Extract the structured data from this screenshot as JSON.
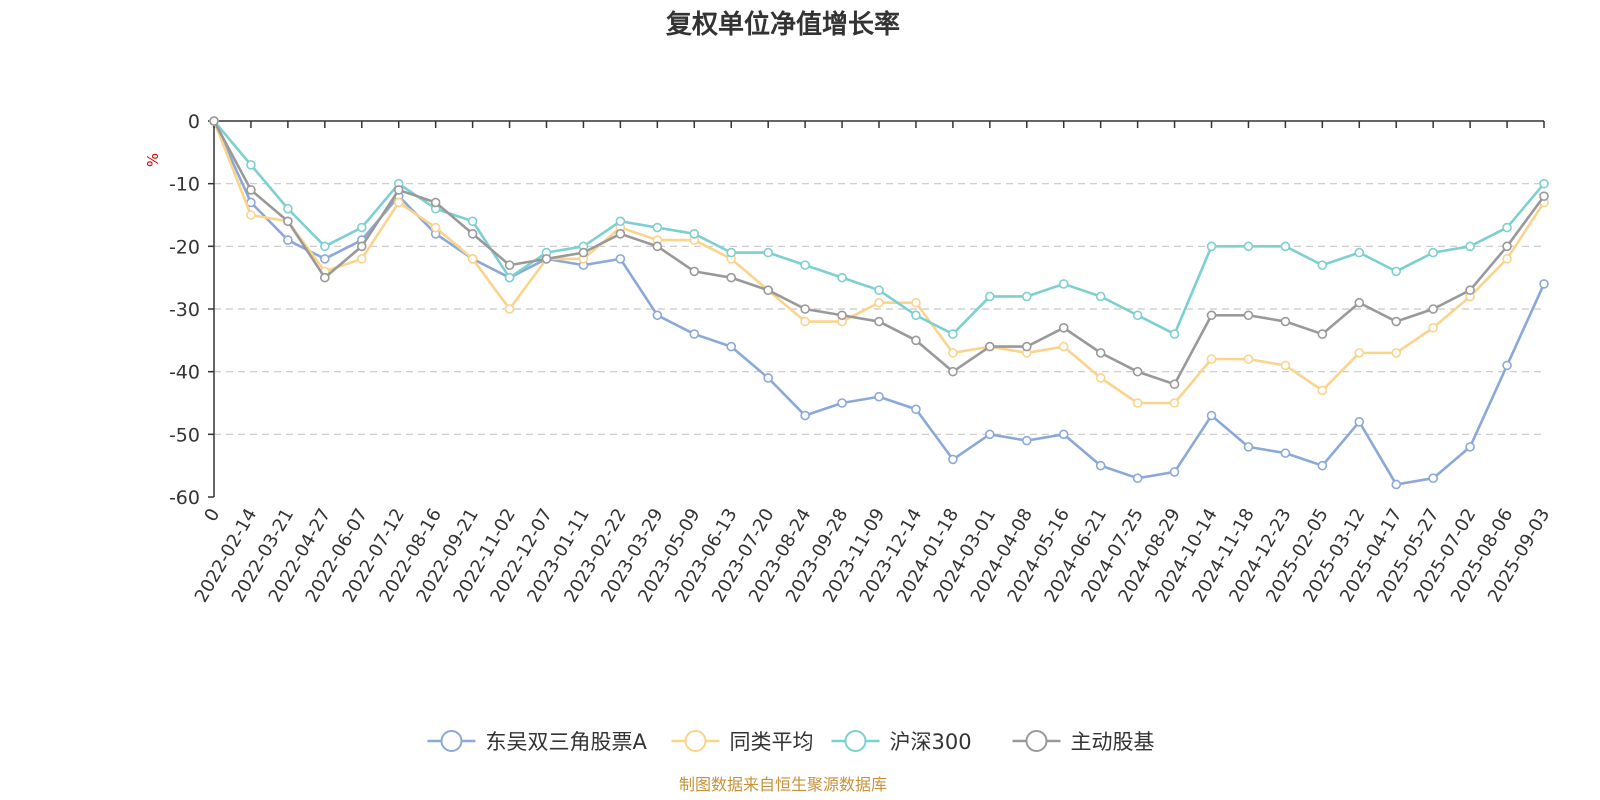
{
  "chart_data": {
    "type": "line",
    "title": "复权单位净值增长率",
    "ylabel": "%",
    "ylim": [
      -60,
      0
    ],
    "yticks": [
      0,
      -10,
      -20,
      -30,
      -40,
      -50,
      -60
    ],
    "grid": true,
    "legend_position": "bottom",
    "source": "制图数据来自恒生聚源数据库",
    "categories": [
      "0",
      "2022-02-14",
      "2022-03-21",
      "2022-04-27",
      "2022-06-07",
      "2022-07-12",
      "2022-08-16",
      "2022-09-21",
      "2022-11-02",
      "2022-12-07",
      "2023-01-11",
      "2023-02-22",
      "2023-03-29",
      "2023-05-09",
      "2023-06-13",
      "2023-07-20",
      "2023-08-24",
      "2023-09-28",
      "2023-11-09",
      "2023-12-14",
      "2024-01-18",
      "2024-03-01",
      "2024-04-08",
      "2024-05-16",
      "2024-06-21",
      "2024-07-25",
      "2024-08-29",
      "2024-10-14",
      "2024-11-18",
      "2024-12-23",
      "2025-02-05",
      "2025-03-12",
      "2025-04-17",
      "2025-05-27",
      "2025-07-02",
      "2025-08-06",
      "2025-09-03"
    ],
    "series": [
      {
        "name": "东吴双三角股票A",
        "color": "#8aa8d8",
        "values": [
          0,
          -13,
          -19,
          -22,
          -19,
          -12,
          -18,
          -22,
          -25,
          -22,
          -23,
          -22,
          -31,
          -34,
          -36,
          -41,
          -47,
          -45,
          -44,
          -46,
          -54,
          -50,
          -51,
          -50,
          -55,
          -57,
          -56,
          -47,
          -52,
          -53,
          -55,
          -48,
          -58,
          -57,
          -52,
          -39,
          -26
        ]
      },
      {
        "name": "同类平均",
        "color": "#fad38c",
        "values": [
          0,
          -15,
          -16,
          -24,
          -22,
          -13,
          -17,
          -22,
          -30,
          -22,
          -22,
          -17,
          -19,
          -19,
          -22,
          -27,
          -32,
          -32,
          -29,
          -29,
          -37,
          -36,
          -37,
          -36,
          -41,
          -45,
          -45,
          -38,
          -38,
          -39,
          -43,
          -37,
          -37,
          -33,
          -28,
          -22,
          -13
        ]
      },
      {
        "name": "沪深300",
        "color": "#7dcfd0",
        "values": [
          0,
          -7,
          -14,
          -20,
          -17,
          -10,
          -14,
          -16,
          -25,
          -21,
          -20,
          -16,
          -17,
          -18,
          -21,
          -21,
          -23,
          -25,
          -27,
          -31,
          -34,
          -28,
          -28,
          -26,
          -28,
          -31,
          -34,
          -20,
          -20,
          -20,
          -23,
          -21,
          -24,
          -21,
          -20,
          -17,
          -10
        ]
      },
      {
        "name": "主动股基",
        "color": "#999999",
        "values": [
          0,
          -11,
          -16,
          -25,
          -20,
          -11,
          -13,
          -18,
          -23,
          -22,
          -21,
          -18,
          -20,
          -24,
          -25,
          -27,
          -30,
          -31,
          -32,
          -35,
          -40,
          -36,
          -36,
          -33,
          -37,
          -40,
          -42,
          -31,
          -31,
          -32,
          -34,
          -29,
          -32,
          -30,
          -27,
          -20,
          -12
        ]
      }
    ]
  }
}
